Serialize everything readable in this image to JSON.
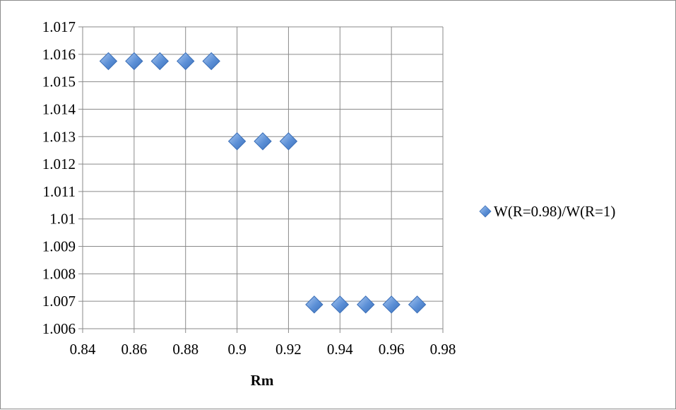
{
  "chart_data": {
    "type": "scatter",
    "title": "",
    "xlabel": "Rm",
    "ylabel": "",
    "xlim": [
      0.84,
      0.98
    ],
    "ylim": [
      1.006,
      1.017
    ],
    "x_ticks": [
      "0.84",
      "0.86",
      "0.88",
      "0.9",
      "0.92",
      "0.94",
      "0.96",
      "0.98"
    ],
    "y_ticks": [
      "1.006",
      "1.007",
      "1.008",
      "1.009",
      "1.01",
      "1.011",
      "1.012",
      "1.013",
      "1.014",
      "1.015",
      "1.016",
      "1.017"
    ],
    "grid": "on",
    "legend_position": "right",
    "marker_color": "#5b8fd6",
    "series": [
      {
        "name": "W(R=0.98)/W(R=1)",
        "marker": "diamond",
        "x": [
          0.85,
          0.86,
          0.87,
          0.88,
          0.89,
          0.9,
          0.91,
          0.92,
          0.93,
          0.94,
          0.95,
          0.96,
          0.97
        ],
        "y": [
          1.01575,
          1.01575,
          1.01575,
          1.01575,
          1.01575,
          1.01283,
          1.01283,
          1.01283,
          1.00688,
          1.00688,
          1.00688,
          1.00688,
          1.00688
        ]
      }
    ]
  }
}
